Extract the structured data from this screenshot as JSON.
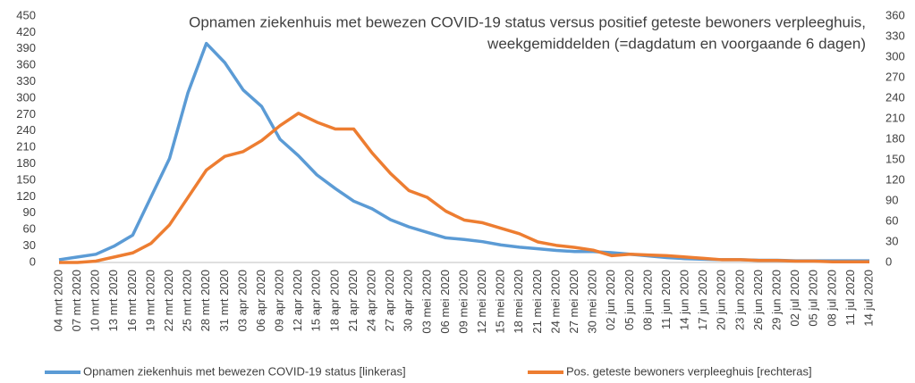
{
  "chart_data": {
    "type": "line",
    "title": [
      "Opnamen ziekenhuis met bewezen COVID-19 status versus positief geteste bewoners verpleeghuis,",
      "weekgemiddelden (=dagdatum en voorgaande 6 dagen)"
    ],
    "categories": [
      "04 mrt 2020",
      "07 mrt 2020",
      "10 mrt 2020",
      "13 mrt 2020",
      "16 mrt 2020",
      "19 mrt 2020",
      "22 mrt 2020",
      "25 mrt 2020",
      "28 mrt 2020",
      "31 mrt 2020",
      "03 apr 2020",
      "06 apr 2020",
      "09 apr 2020",
      "12 apr 2020",
      "15 apr 2020",
      "18 apr 2020",
      "21 apr 2020",
      "24 apr 2020",
      "27 apr 2020",
      "30 apr 2020",
      "03 mei 2020",
      "06 mei 2020",
      "09 mei 2020",
      "12 mei 2020",
      "15 mei 2020",
      "18 mei 2020",
      "21 mei 2020",
      "24 mei 2020",
      "27 mei 2020",
      "30 mei 2020",
      "02 jun 2020",
      "05 jun 2020",
      "08 jun 2020",
      "11 jun 2020",
      "14 jun 2020",
      "17 jun 2020",
      "20 jun 2020",
      "23 jun 2020",
      "26 jun 2020",
      "29 jun 2020",
      "02 jul 2020",
      "05 jul 2020",
      "08 jul 2020",
      "11 jul 2020",
      "14 jul 2020"
    ],
    "series": [
      {
        "name": "Opnamen ziekenhuis met bewezen COVID-19 status [linkeras]",
        "color": "#5b9bd5",
        "axis": "y",
        "values": [
          5,
          10,
          15,
          30,
          50,
          120,
          190,
          310,
          400,
          365,
          315,
          285,
          225,
          195,
          160,
          135,
          112,
          98,
          78,
          65,
          55,
          45,
          42,
          38,
          32,
          28,
          25,
          22,
          20,
          20,
          18,
          15,
          12,
          9,
          7,
          6,
          5,
          5,
          4,
          4,
          3,
          3,
          3,
          3,
          3
        ]
      },
      {
        "name": "Pos. geteste bewoners verpleeghuis [rechteras]",
        "color": "#ed7d31",
        "axis": "y2",
        "values": [
          0,
          0,
          2,
          8,
          14,
          28,
          55,
          95,
          135,
          155,
          162,
          178,
          200,
          218,
          205,
          195,
          195,
          160,
          130,
          105,
          95,
          75,
          62,
          58,
          50,
          42,
          30,
          25,
          22,
          18,
          10,
          12,
          11,
          10,
          8,
          6,
          4,
          4,
          3,
          3,
          2,
          2,
          1,
          1,
          1
        ]
      }
    ],
    "ylim": [
      0,
      450
    ],
    "yticks": [
      0,
      30,
      60,
      90,
      120,
      150,
      180,
      210,
      240,
      270,
      300,
      330,
      360,
      390,
      420,
      450
    ],
    "y2lim": [
      0,
      360
    ],
    "y2ticks": [
      0,
      30,
      60,
      90,
      120,
      150,
      180,
      210,
      240,
      270,
      300,
      330,
      360
    ],
    "grid": false
  }
}
